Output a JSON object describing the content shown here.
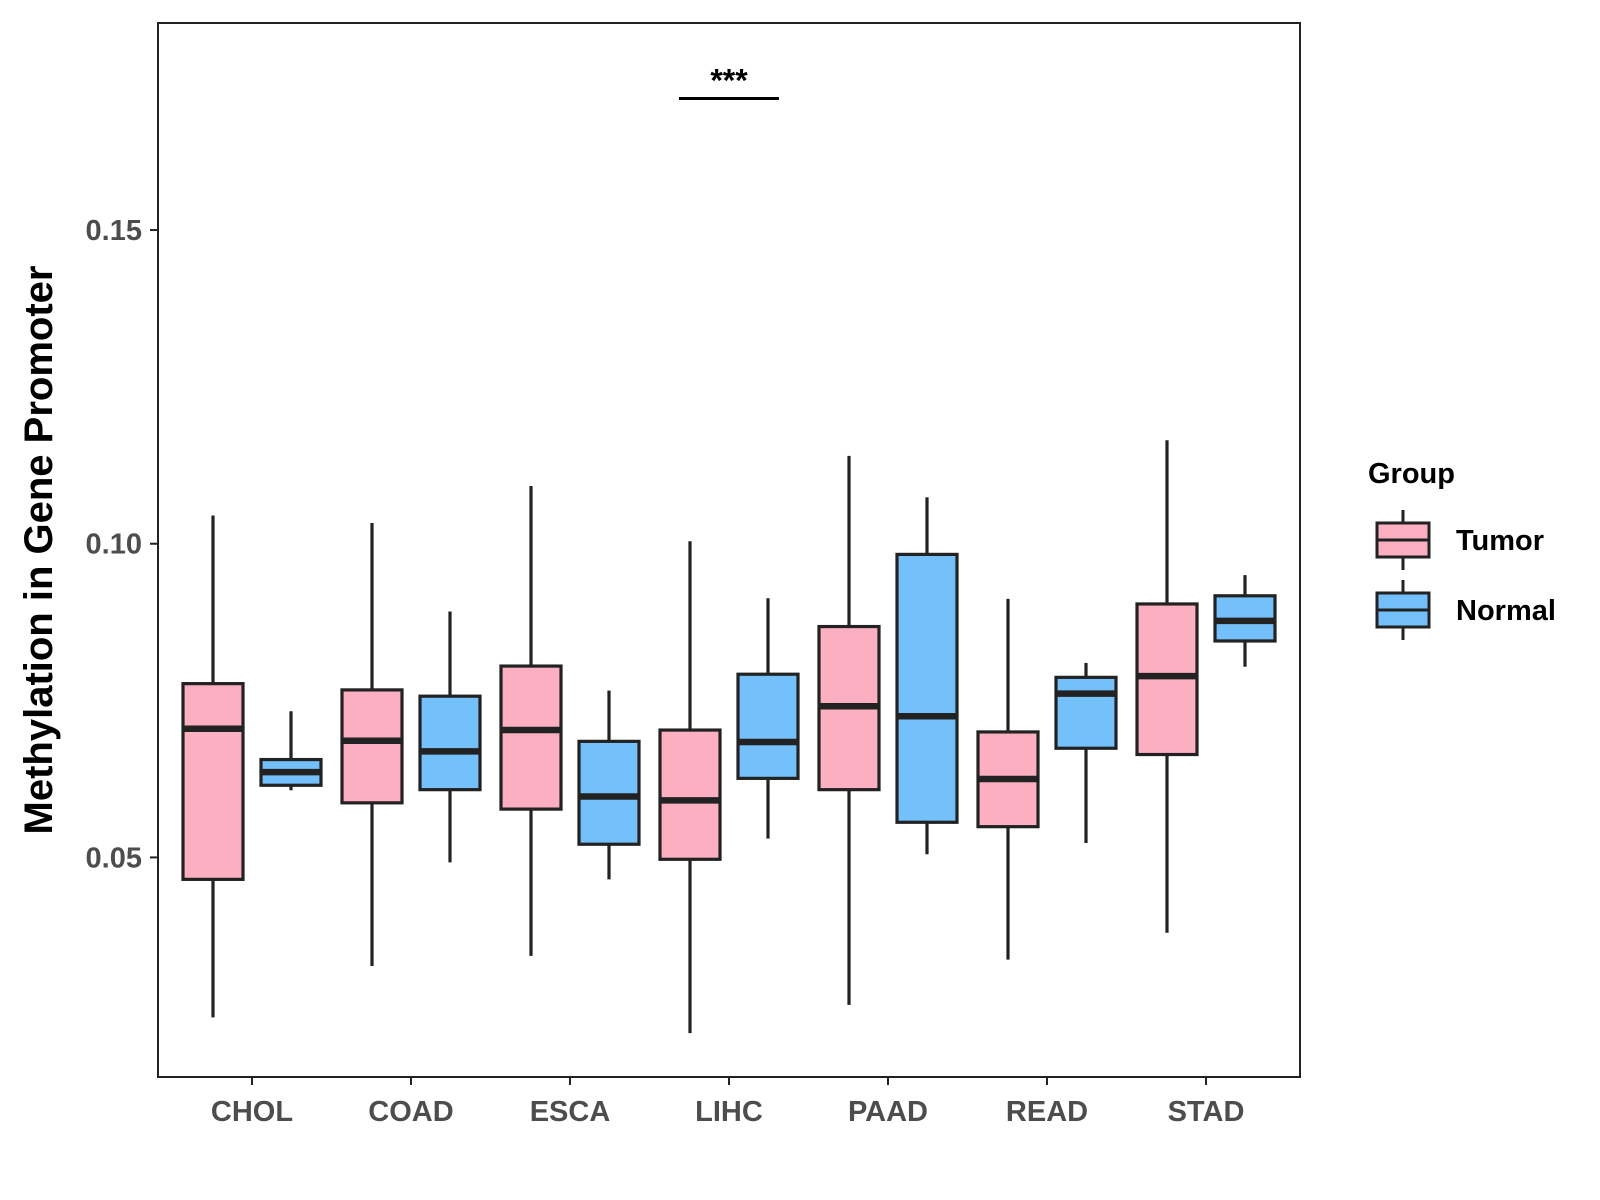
{
  "chart_data": {
    "type": "box",
    "title": "",
    "xlabel": "",
    "ylabel": "Methylation in Gene Promoter",
    "ylim": [
      0.015,
      0.183
    ],
    "yticks": [
      0.05,
      0.1,
      0.15
    ],
    "ytick_labels": [
      "0.05",
      "0.10",
      "0.15"
    ],
    "categories": [
      "CHOL",
      "COAD",
      "ESCA",
      "LIHC",
      "PAAD",
      "READ",
      "STAD"
    ],
    "legend": {
      "title": "Group",
      "position": "right",
      "entries": [
        {
          "name": "Tumor",
          "color": "#fbafc0"
        },
        {
          "name": "Normal",
          "color": "#73c0fa"
        }
      ]
    },
    "series": [
      {
        "name": "Tumor",
        "color": "#fbafc0",
        "boxes": [
          {
            "category": "CHOL",
            "whisker_low": 0.0245,
            "q1": 0.0465,
            "median": 0.0705,
            "q3": 0.0777,
            "whisker_high": 0.1045
          },
          {
            "category": "COAD",
            "whisker_low": 0.0327,
            "q1": 0.0587,
            "median": 0.0686,
            "q3": 0.0767,
            "whisker_high": 0.1033
          },
          {
            "category": "ESCA",
            "whisker_low": 0.0343,
            "q1": 0.0577,
            "median": 0.0703,
            "q3": 0.0805,
            "whisker_high": 0.1092
          },
          {
            "category": "LIHC",
            "whisker_low": 0.022,
            "q1": 0.0497,
            "median": 0.0591,
            "q3": 0.0703,
            "whisker_high": 0.1004
          },
          {
            "category": "PAAD",
            "whisker_low": 0.0265,
            "q1": 0.0608,
            "median": 0.0741,
            "q3": 0.0868,
            "whisker_high": 0.114
          },
          {
            "category": "READ",
            "whisker_low": 0.0337,
            "q1": 0.0549,
            "median": 0.0625,
            "q3": 0.07,
            "whisker_high": 0.0912
          },
          {
            "category": "STAD",
            "whisker_low": 0.038,
            "q1": 0.0664,
            "median": 0.0789,
            "q3": 0.0904,
            "whisker_high": 0.1165
          }
        ]
      },
      {
        "name": "Normal",
        "color": "#73c0fa",
        "boxes": [
          {
            "category": "CHOL",
            "whisker_low": 0.0607,
            "q1": 0.0615,
            "median": 0.0636,
            "q3": 0.0656,
            "whisker_high": 0.0733
          },
          {
            "category": "COAD",
            "whisker_low": 0.0492,
            "q1": 0.0608,
            "median": 0.0669,
            "q3": 0.0757,
            "whisker_high": 0.0892
          },
          {
            "category": "ESCA",
            "whisker_low": 0.0465,
            "q1": 0.0521,
            "median": 0.0597,
            "q3": 0.0685,
            "whisker_high": 0.0766
          },
          {
            "category": "LIHC",
            "whisker_low": 0.053,
            "q1": 0.0626,
            "median": 0.0684,
            "q3": 0.0792,
            "whisker_high": 0.0913
          },
          {
            "category": "PAAD",
            "whisker_low": 0.0505,
            "q1": 0.0556,
            "median": 0.0725,
            "q3": 0.0983,
            "whisker_high": 0.1074
          },
          {
            "category": "READ",
            "whisker_low": 0.0523,
            "q1": 0.0674,
            "median": 0.0761,
            "q3": 0.0787,
            "whisker_high": 0.081
          },
          {
            "category": "STAD",
            "whisker_low": 0.0804,
            "q1": 0.0845,
            "median": 0.0877,
            "q3": 0.0917,
            "whisker_high": 0.095
          }
        ]
      }
    ],
    "annotations": [
      {
        "category": "LIHC",
        "text": "***",
        "y": 0.174
      }
    ]
  }
}
